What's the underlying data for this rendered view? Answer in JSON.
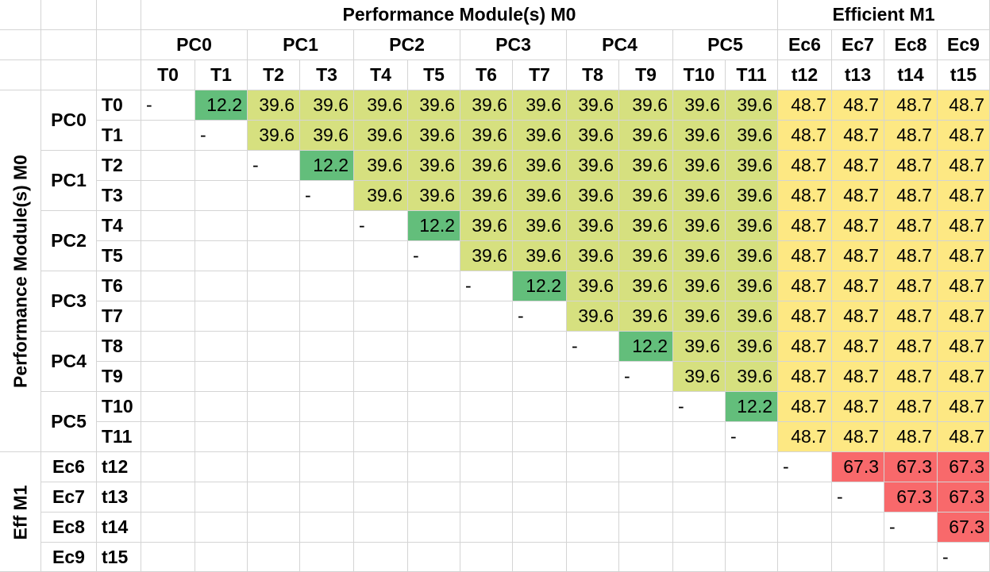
{
  "chart_data": {
    "type": "heatmap",
    "title_performance": "Performance Module(s) M0",
    "title_efficient": "Efficient M1",
    "row_group_performance": "Performance Module(s) M0",
    "row_group_efficient": "Eff M1",
    "core_groups": [
      {
        "label": "PC0",
        "threads": [
          "T0",
          "T1"
        ]
      },
      {
        "label": "PC1",
        "threads": [
          "T2",
          "T3"
        ]
      },
      {
        "label": "PC2",
        "threads": [
          "T4",
          "T5"
        ]
      },
      {
        "label": "PC3",
        "threads": [
          "T6",
          "T7"
        ]
      },
      {
        "label": "PC4",
        "threads": [
          "T8",
          "T9"
        ]
      },
      {
        "label": "PC5",
        "threads": [
          "T10",
          "T11"
        ]
      }
    ],
    "efficient_cores": [
      {
        "label": "Ec6",
        "col_thread": "t12",
        "row_thread": "t12"
      },
      {
        "label": "Ec7",
        "col_thread": "t13",
        "row_thread": "t13"
      },
      {
        "label": "Ec8",
        "col_thread": "t14",
        "row_thread": "t14"
      },
      {
        "label": "Ec9",
        "col_thread": "t15",
        "row_thread": "t15"
      }
    ],
    "diagonal_marker": "-",
    "values": [
      [
        null,
        12.2,
        39.6,
        39.6,
        39.6,
        39.6,
        39.6,
        39.6,
        39.6,
        39.6,
        39.6,
        39.6,
        48.7,
        48.7,
        48.7,
        48.7
      ],
      [
        null,
        null,
        39.6,
        39.6,
        39.6,
        39.6,
        39.6,
        39.6,
        39.6,
        39.6,
        39.6,
        39.6,
        48.7,
        48.7,
        48.7,
        48.7
      ],
      [
        null,
        null,
        null,
        12.2,
        39.6,
        39.6,
        39.6,
        39.6,
        39.6,
        39.6,
        39.6,
        39.6,
        48.7,
        48.7,
        48.7,
        48.7
      ],
      [
        null,
        null,
        null,
        null,
        39.6,
        39.6,
        39.6,
        39.6,
        39.6,
        39.6,
        39.6,
        39.6,
        48.7,
        48.7,
        48.7,
        48.7
      ],
      [
        null,
        null,
        null,
        null,
        null,
        12.2,
        39.6,
        39.6,
        39.6,
        39.6,
        39.6,
        39.6,
        48.7,
        48.7,
        48.7,
        48.7
      ],
      [
        null,
        null,
        null,
        null,
        null,
        null,
        39.6,
        39.6,
        39.6,
        39.6,
        39.6,
        39.6,
        48.7,
        48.7,
        48.7,
        48.7
      ],
      [
        null,
        null,
        null,
        null,
        null,
        null,
        null,
        12.2,
        39.6,
        39.6,
        39.6,
        39.6,
        48.7,
        48.7,
        48.7,
        48.7
      ],
      [
        null,
        null,
        null,
        null,
        null,
        null,
        null,
        null,
        39.6,
        39.6,
        39.6,
        39.6,
        48.7,
        48.7,
        48.7,
        48.7
      ],
      [
        null,
        null,
        null,
        null,
        null,
        null,
        null,
        null,
        null,
        12.2,
        39.6,
        39.6,
        48.7,
        48.7,
        48.7,
        48.7
      ],
      [
        null,
        null,
        null,
        null,
        null,
        null,
        null,
        null,
        null,
        null,
        39.6,
        39.6,
        48.7,
        48.7,
        48.7,
        48.7
      ],
      [
        null,
        null,
        null,
        null,
        null,
        null,
        null,
        null,
        null,
        null,
        null,
        12.2,
        48.7,
        48.7,
        48.7,
        48.7
      ],
      [
        null,
        null,
        null,
        null,
        null,
        null,
        null,
        null,
        null,
        null,
        null,
        null,
        48.7,
        48.7,
        48.7,
        48.7
      ],
      [
        null,
        null,
        null,
        null,
        null,
        null,
        null,
        null,
        null,
        null,
        null,
        null,
        null,
        67.3,
        67.3,
        67.3
      ],
      [
        null,
        null,
        null,
        null,
        null,
        null,
        null,
        null,
        null,
        null,
        null,
        null,
        null,
        null,
        67.3,
        67.3
      ],
      [
        null,
        null,
        null,
        null,
        null,
        null,
        null,
        null,
        null,
        null,
        null,
        null,
        null,
        null,
        null,
        67.3
      ],
      [
        null,
        null,
        null,
        null,
        null,
        null,
        null,
        null,
        null,
        null,
        null,
        null,
        null,
        null,
        null,
        null
      ]
    ],
    "value_colors": {
      "12.2": "#63be7b",
      "39.6": "#d6e07f",
      "48.7": "#fde883",
      "67.3": "#f8696b"
    }
  }
}
